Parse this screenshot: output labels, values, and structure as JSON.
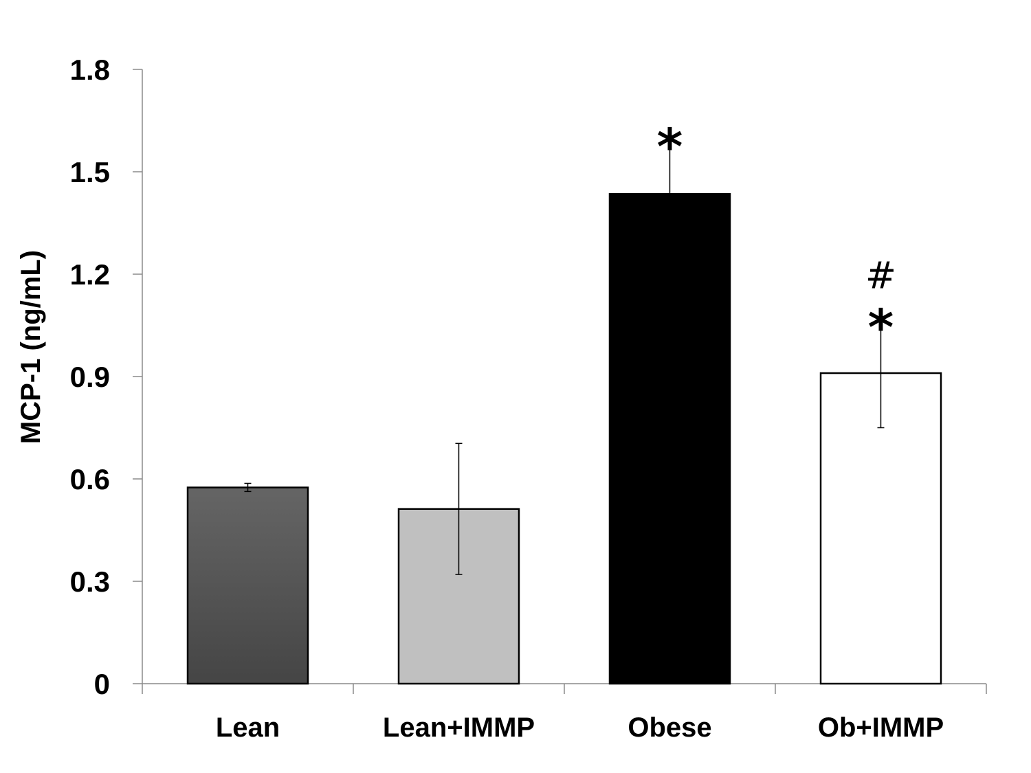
{
  "chart_data": {
    "type": "bar",
    "categories": [
      "Lean",
      "Lean+IMMP",
      "Obese",
      "Ob+IMMP"
    ],
    "values": [
      0.575,
      0.512,
      1.435,
      0.91
    ],
    "errors": [
      0.012,
      0.192,
      0.165,
      0.16
    ],
    "colors": [
      "#555555",
      "#c0c0c0",
      "#000000",
      "#ffffff"
    ],
    "annotations": [
      {
        "category": "Lean",
        "text": ""
      },
      {
        "category": "Lean+IMMP",
        "text": ""
      },
      {
        "category": "Obese",
        "text": "*"
      },
      {
        "category": "Ob+IMMP",
        "text": "#\n*"
      }
    ],
    "ylabel": "MCP-1 (ng/mL)",
    "xlabel": "",
    "ylim": [
      0,
      1.8
    ],
    "yticks": [
      0,
      0.3,
      0.6,
      0.9,
      1.2,
      1.5,
      1.8
    ],
    "ytick_labels": [
      "0",
      "0.3",
      "0.6",
      "0.9",
      "1.2",
      "1.5",
      "1.8"
    ],
    "grid": false,
    "legend": "none"
  }
}
